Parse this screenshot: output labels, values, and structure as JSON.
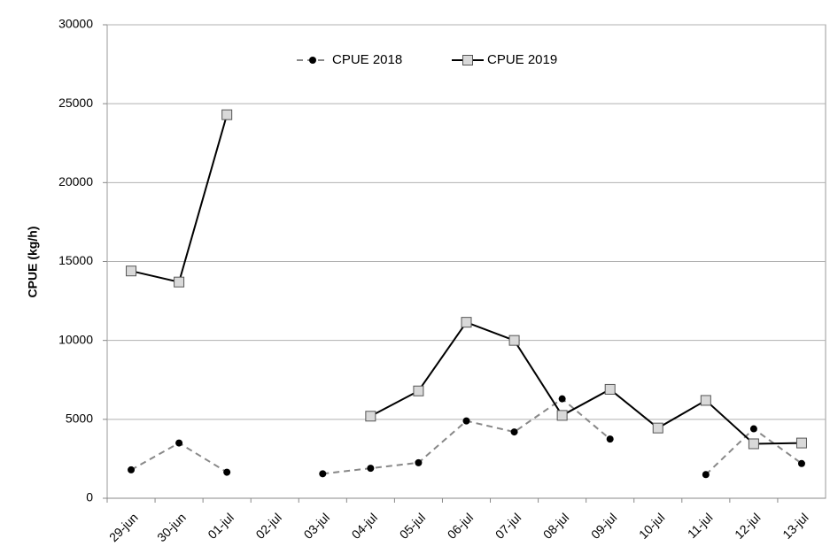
{
  "chart_data": {
    "type": "line",
    "y_label": "CPUE (kg/h)",
    "categories": [
      "29-jun",
      "30-jun",
      "01-jul",
      "02-jul",
      "03-jul",
      "04-jul",
      "05-jul",
      "06-jul",
      "07-jul",
      "08-jul",
      "09-jul",
      "10-jul",
      "11-jul",
      "12-jul",
      "13-jul"
    ],
    "series": [
      {
        "name": "CPUE 2018",
        "color": "#888888",
        "marker_color": "#000000",
        "marker": "circle",
        "dashed": true,
        "values": [
          1800,
          3500,
          1650,
          null,
          1550,
          1900,
          2250,
          4900,
          4200,
          6300,
          3750,
          null,
          1500,
          4400,
          2200
        ]
      },
      {
        "name": "CPUE 2019",
        "color": "#000000",
        "marker_color": "#d9d9d9",
        "marker": "square",
        "dashed": false,
        "values": [
          14400,
          13700,
          24300,
          null,
          null,
          5200,
          6800,
          11150,
          10000,
          5250,
          6900,
          4450,
          6200,
          3450,
          3500
        ]
      }
    ],
    "ylim": [
      0,
      30000
    ],
    "yticks": [
      0,
      5000,
      10000,
      15000,
      20000,
      25000,
      30000
    ],
    "grid": true,
    "legend": "top"
  }
}
